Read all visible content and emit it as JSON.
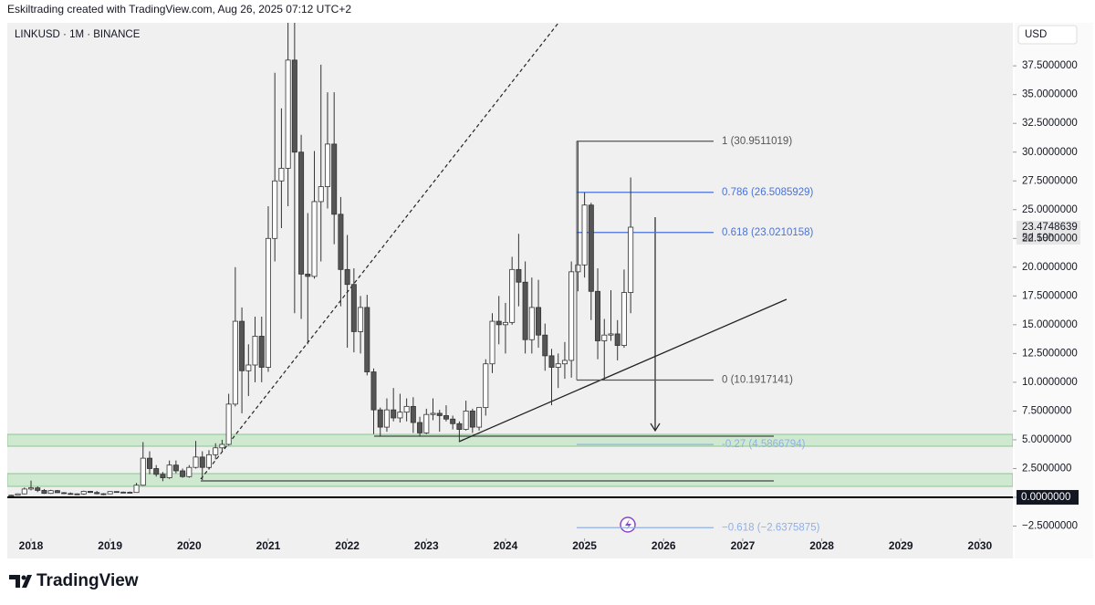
{
  "header": {
    "credit": "Eskiltrading created with TradingView.com, Aug 26, 2025 07:12 UTC+2"
  },
  "chart_data": {
    "type": "candlestick",
    "title": "LINKUSD · 1M · BINANCE",
    "currency": "USD",
    "countdown": "5d 19h",
    "categories": [
      null,
      null,
      null,
      null,
      null,
      null,
      null,
      null,
      null,
      null,
      null,
      null,
      null,
      null,
      null,
      null,
      null,
      null,
      null,
      null,
      null,
      null,
      null,
      null,
      null,
      null,
      null,
      null,
      null,
      null,
      null,
      null,
      null,
      null,
      null,
      null,
      null,
      null,
      null,
      null,
      null,
      null,
      null,
      null,
      null,
      null,
      null,
      null,
      null,
      null,
      null,
      null,
      null,
      null,
      null,
      null,
      null,
      null,
      null,
      null,
      null,
      null,
      null,
      null,
      null,
      null,
      null,
      null,
      null,
      null,
      null,
      null,
      null,
      null,
      null,
      null,
      null,
      null,
      null,
      null,
      null,
      null,
      null,
      null,
      null,
      null,
      null,
      null,
      null,
      null,
      null,
      null,
      null,
      null,
      null
    ],
    "open": [
      0.17,
      0.18,
      0.3,
      0.72,
      0.82,
      0.6,
      0.34,
      0.58,
      0.4,
      0.33,
      0.3,
      0.29,
      0.52,
      0.42,
      0.31,
      0.3,
      0.5,
      0.45,
      0.44,
      0.42,
      1.05,
      3.4,
      2.5,
      2.0,
      1.7,
      2.8,
      2.3,
      1.8,
      2.6,
      3.5,
      2.6,
      3.7,
      4.3,
      4.6,
      8.1,
      15.3,
      11.0,
      11.5,
      14.0,
      11.3,
      22.5,
      27.5,
      28.6,
      38.0,
      30.0,
      19.4,
      19.2,
      25.7,
      27.0,
      30.7,
      24.6,
      19.8,
      18.5,
      14.4,
      16.5,
      10.9,
      7.6,
      6.1,
      7.6,
      6.9,
      7.4,
      7.9,
      6.5,
      5.6,
      7.2,
      7.3,
      7.1,
      6.8,
      6.4,
      5.9,
      7.5,
      6.1,
      7.8,
      11.6,
      15.3,
      15.0,
      15.2,
      19.8,
      18.7,
      13.7,
      16.5,
      14.1,
      12.3,
      11.3,
      11.6,
      11.9,
      19.6,
      20.2,
      25.4,
      17.9,
      13.6,
      14.1,
      14.2,
      13.2,
      17.8
    ],
    "high": [
      0.22,
      0.33,
      0.85,
      1.45,
      0.95,
      0.72,
      0.65,
      0.64,
      0.45,
      0.42,
      0.33,
      0.58,
      0.56,
      0.55,
      0.36,
      0.52,
      0.52,
      0.5,
      0.5,
      1.25,
      4.8,
      4.0,
      2.8,
      2.2,
      3.2,
      3.2,
      2.5,
      2.8,
      4.9,
      4.0,
      4.1,
      4.7,
      5.0,
      9.0,
      20.0,
      16.5,
      13.3,
      15.7,
      15.7,
      25.3,
      36.9,
      33.8,
      44.3,
      52.9,
      31.5,
      24.7,
      30.1,
      37.6,
      35.2,
      35.2,
      26.1,
      22.8,
      19.9,
      17.5,
      17.6,
      11.2,
      7.8,
      8.6,
      9.5,
      9.0,
      8.6,
      8.7,
      7.0,
      7.7,
      8.6,
      7.6,
      8.0,
      7.1,
      6.6,
      8.4,
      7.7,
      7.8,
      12.0,
      16.0,
      17.5,
      16.9,
      20.9,
      22.9,
      20.5,
      19.1,
      18.9,
      15.1,
      12.9,
      12.5,
      13.5,
      20.5,
      30.9,
      26.5,
      25.6,
      19.9,
      15.5,
      18.0,
      15.4,
      19.8,
      27.8
    ],
    "low": [
      0.12,
      0.15,
      0.26,
      0.6,
      0.45,
      0.3,
      0.3,
      0.38,
      0.28,
      0.28,
      0.22,
      0.22,
      0.38,
      0.26,
      0.19,
      0.28,
      0.4,
      0.4,
      0.38,
      0.4,
      1.0,
      2.0,
      1.8,
      1.4,
      1.6,
      2.1,
      1.7,
      1.7,
      2.5,
      1.5,
      2.4,
      3.3,
      3.9,
      4.5,
      7.9,
      7.3,
      8.8,
      10.0,
      10.0,
      10.9,
      20.5,
      23.4,
      25.3,
      16.0,
      15.5,
      13.3,
      19.0,
      20.5,
      25.1,
      22.0,
      16.6,
      13.0,
      12.6,
      12.5,
      10.6,
      5.5,
      5.3,
      5.7,
      6.6,
      6.5,
      6.6,
      5.6,
      5.3,
      5.5,
      6.7,
      5.7,
      6.6,
      5.9,
      4.8,
      5.8,
      5.6,
      5.8,
      7.1,
      10.8,
      13.3,
      12.5,
      15.0,
      16.6,
      12.5,
      12.5,
      13.0,
      11.0,
      8.0,
      9.5,
      10.3,
      10.4,
      17.9,
      19.1,
      15.4,
      12.0,
      10.2,
      13.6,
      11.9,
      13.0,
      16.0
    ],
    "close": [
      0.18,
      0.3,
      0.72,
      0.82,
      0.6,
      0.34,
      0.58,
      0.4,
      0.33,
      0.3,
      0.29,
      0.52,
      0.42,
      0.31,
      0.3,
      0.5,
      0.45,
      0.44,
      0.42,
      1.05,
      3.4,
      2.5,
      2.0,
      1.7,
      2.8,
      2.3,
      1.8,
      2.6,
      3.5,
      2.6,
      3.7,
      4.3,
      4.6,
      8.1,
      15.3,
      11.0,
      11.5,
      14.0,
      11.3,
      22.5,
      27.5,
      28.6,
      38.0,
      30.0,
      19.4,
      19.2,
      25.7,
      27.0,
      30.7,
      24.6,
      19.8,
      18.5,
      14.4,
      16.5,
      10.9,
      7.6,
      6.1,
      7.6,
      6.9,
      7.4,
      7.9,
      6.5,
      5.6,
      7.2,
      7.3,
      7.1,
      6.8,
      6.4,
      5.9,
      7.5,
      6.1,
      7.8,
      11.6,
      15.3,
      15.0,
      15.2,
      19.8,
      18.7,
      13.7,
      16.5,
      14.1,
      12.3,
      11.3,
      11.6,
      11.9,
      19.6,
      20.2,
      25.4,
      17.9,
      13.6,
      14.1,
      14.2,
      13.2,
      17.8,
      23.4748639
    ],
    "up_color": "#ffffff",
    "down_color": "#555555",
    "wick_color": "#333333",
    "xlim": [
      -0.6,
      152
    ],
    "xticks": [
      {
        "value": 3,
        "label": "2018"
      },
      {
        "value": 15,
        "label": "2019"
      },
      {
        "value": 27,
        "label": "2020"
      },
      {
        "value": 39,
        "label": "2021"
      },
      {
        "value": 51,
        "label": "2022"
      },
      {
        "value": 63,
        "label": "2023"
      },
      {
        "value": 75,
        "label": "2024"
      },
      {
        "value": 87,
        "label": "2025"
      },
      {
        "value": 99,
        "label": "2026"
      },
      {
        "value": 111,
        "label": "2027"
      },
      {
        "value": 123,
        "label": "2028"
      },
      {
        "value": 135,
        "label": "2029"
      },
      {
        "value": 147,
        "label": "2030"
      }
    ],
    "ylim": [
      -3.57,
      41.24
    ],
    "yticks": [
      {
        "value": -2.5,
        "label": "−2.5000000"
      },
      {
        "value": 0,
        "label": "0.0000000"
      },
      {
        "value": 2.5,
        "label": "2.5000000"
      },
      {
        "value": 5,
        "label": "5.0000000"
      },
      {
        "value": 7.5,
        "label": "7.5000000"
      },
      {
        "value": 10,
        "label": "10.0000000"
      },
      {
        "value": 12.5,
        "label": "12.5000000"
      },
      {
        "value": 15,
        "label": "15.0000000"
      },
      {
        "value": 17.5,
        "label": "17.5000000"
      },
      {
        "value": 20,
        "label": "20.0000000"
      },
      {
        "value": 22.5,
        "label": "22.5000000"
      },
      {
        "value": 25,
        "label": "25.0000000"
      },
      {
        "value": 27.5,
        "label": "27.5000000"
      },
      {
        "value": 30,
        "label": "30.0000000"
      },
      {
        "value": 32.5,
        "label": "32.5000000"
      },
      {
        "value": 35,
        "label": "35.0000000"
      },
      {
        "value": 37.5,
        "label": "37.5000000"
      }
    ],
    "fib_levels": [
      {
        "value": 30.9511019,
        "label": "1 (30.9511019)",
        "color": "#555555"
      },
      {
        "value": 26.5085929,
        "label": "0.786 (26.5085929)",
        "color": "#4a72d9"
      },
      {
        "value": 23.0210158,
        "label": "0.618 (23.0210158)",
        "color": "#4a72d9"
      },
      {
        "value": 10.1917141,
        "label": "0 (10.1917141)",
        "color": "#555555"
      },
      {
        "value": 4.5866794,
        "label": "-0.27 (4.5866794)",
        "color": "#8fb0e6"
      },
      {
        "value": -2.6375875,
        "label": "−0.618 (−2.6375875)",
        "color": "#8fb0e6"
      }
    ]
  },
  "footer": {
    "brand": "TradingView"
  }
}
